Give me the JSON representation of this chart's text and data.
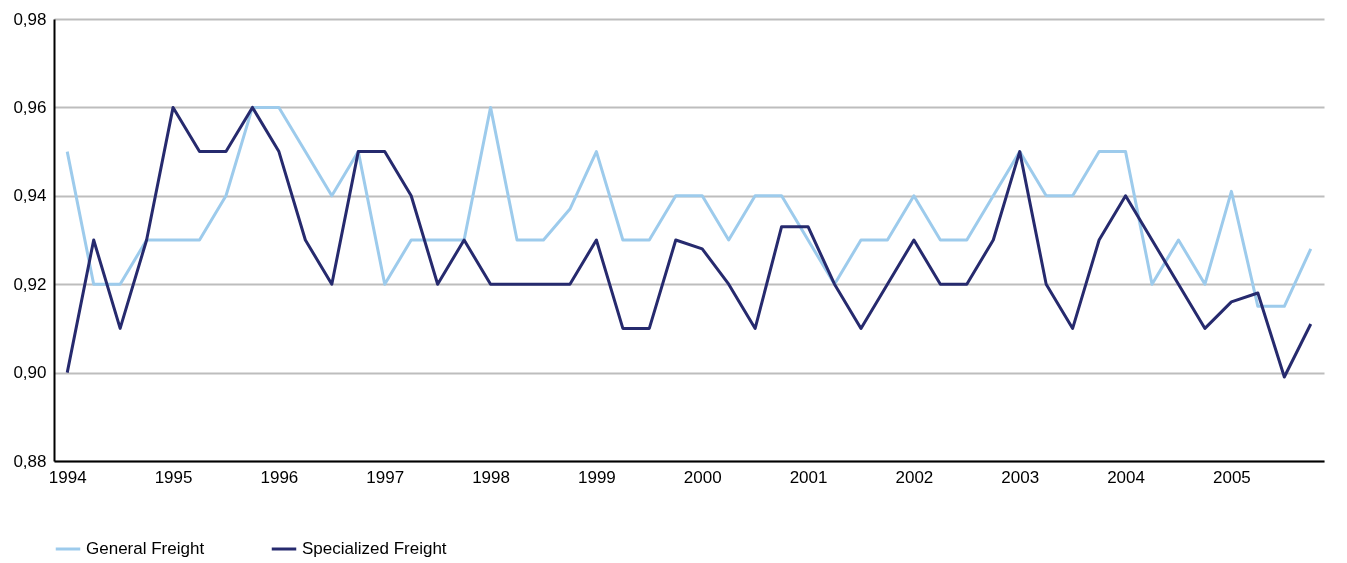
{
  "chart_data": {
    "type": "line",
    "categories": [
      "1994",
      null,
      null,
      null,
      "1995",
      null,
      null,
      null,
      "1996",
      null,
      null,
      null,
      "1997",
      null,
      null,
      null,
      "1998",
      null,
      null,
      null,
      "1999",
      null,
      null,
      null,
      "2000",
      null,
      null,
      null,
      "2001",
      null,
      null,
      null,
      "2002",
      null,
      null,
      null,
      "2003",
      null,
      null,
      null,
      "2004",
      null,
      null,
      null,
      "2005",
      null,
      null,
      null
    ],
    "series": [
      {
        "name": "General Freight",
        "color": "#9dcbec",
        "values": [
          0.95,
          0.92,
          0.92,
          0.93,
          0.93,
          0.93,
          0.94,
          0.96,
          0.96,
          0.95,
          0.94,
          0.95,
          0.92,
          0.93,
          0.93,
          0.93,
          0.96,
          0.93,
          0.93,
          0.937,
          0.95,
          0.93,
          0.93,
          0.94,
          0.94,
          0.93,
          0.94,
          0.94,
          0.93,
          0.92,
          0.93,
          0.93,
          0.94,
          0.93,
          0.93,
          0.94,
          0.95,
          0.94,
          0.94,
          0.95,
          0.95,
          0.92,
          0.93,
          0.92,
          0.941,
          0.915,
          0.915,
          0.928
        ]
      },
      {
        "name": "Specialized Freight",
        "color": "#262a6e",
        "values": [
          0.9,
          0.93,
          0.91,
          0.93,
          0.96,
          0.95,
          0.95,
          0.96,
          0.95,
          0.93,
          0.92,
          0.95,
          0.95,
          0.94,
          0.92,
          0.93,
          0.92,
          0.92,
          0.92,
          0.92,
          0.93,
          0.91,
          0.91,
          0.93,
          0.928,
          0.92,
          0.91,
          0.933,
          0.933,
          0.92,
          0.91,
          0.92,
          0.93,
          0.92,
          0.92,
          0.93,
          0.95,
          0.92,
          0.91,
          0.93,
          0.94,
          0.93,
          0.92,
          0.91,
          0.916,
          0.918,
          0.899,
          0.911
        ]
      }
    ],
    "ylim": [
      0.88,
      0.98
    ],
    "yticks": [
      {
        "value": 0.88,
        "label": "0,88"
      },
      {
        "value": 0.9,
        "label": "0,90"
      },
      {
        "value": 0.92,
        "label": "0,92"
      },
      {
        "value": 0.94,
        "label": "0,94"
      },
      {
        "value": 0.96,
        "label": "0,96"
      },
      {
        "value": 0.98,
        "label": "0,98"
      }
    ],
    "grid": "y",
    "legend": "bottom",
    "line_style": "solid",
    "marker": "none"
  }
}
